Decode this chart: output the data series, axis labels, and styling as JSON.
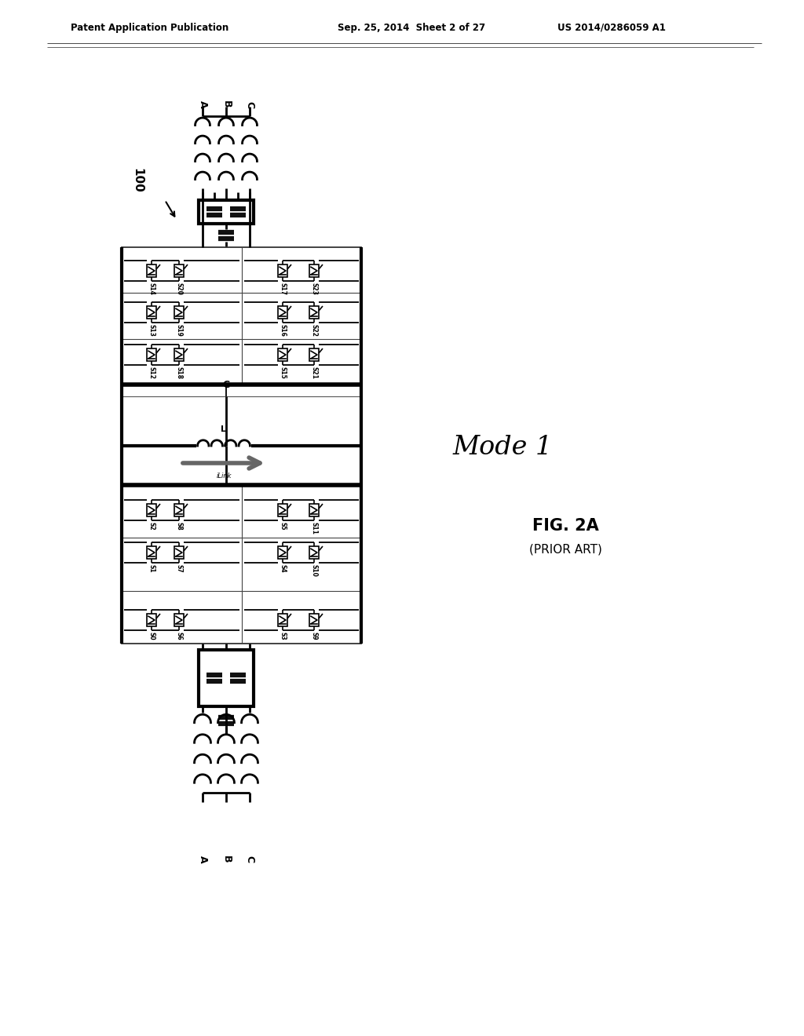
{
  "title_left": "Patent Application Publication",
  "title_mid": "Sep. 25, 2014  Sheet 2 of 27",
  "title_right": "US 2014/0286059 A1",
  "fig_label": "FIG. 2A",
  "fig_sublabel": "(PRIOR ART)",
  "mode_label": "Mode 1",
  "ref_100": "100",
  "bg_color": "#ffffff",
  "line_color": "#000000",
  "dark_fill": "#1a1a1a",
  "gray_arrow": "#888888",
  "switch_labels_top_left": [
    "S14",
    "S20",
    "S13",
    "S19",
    "S12",
    "S18"
  ],
  "switch_labels_top_right": [
    "S17",
    "S23",
    "S16",
    "S22",
    "S15",
    "S21"
  ],
  "switch_labels_bot_left": [
    "S2",
    "S8",
    "S1",
    "S7",
    "S0",
    "S6"
  ],
  "switch_labels_bot_right": [
    "S5",
    "S11",
    "S4",
    "S10",
    "S3",
    "S9"
  ]
}
